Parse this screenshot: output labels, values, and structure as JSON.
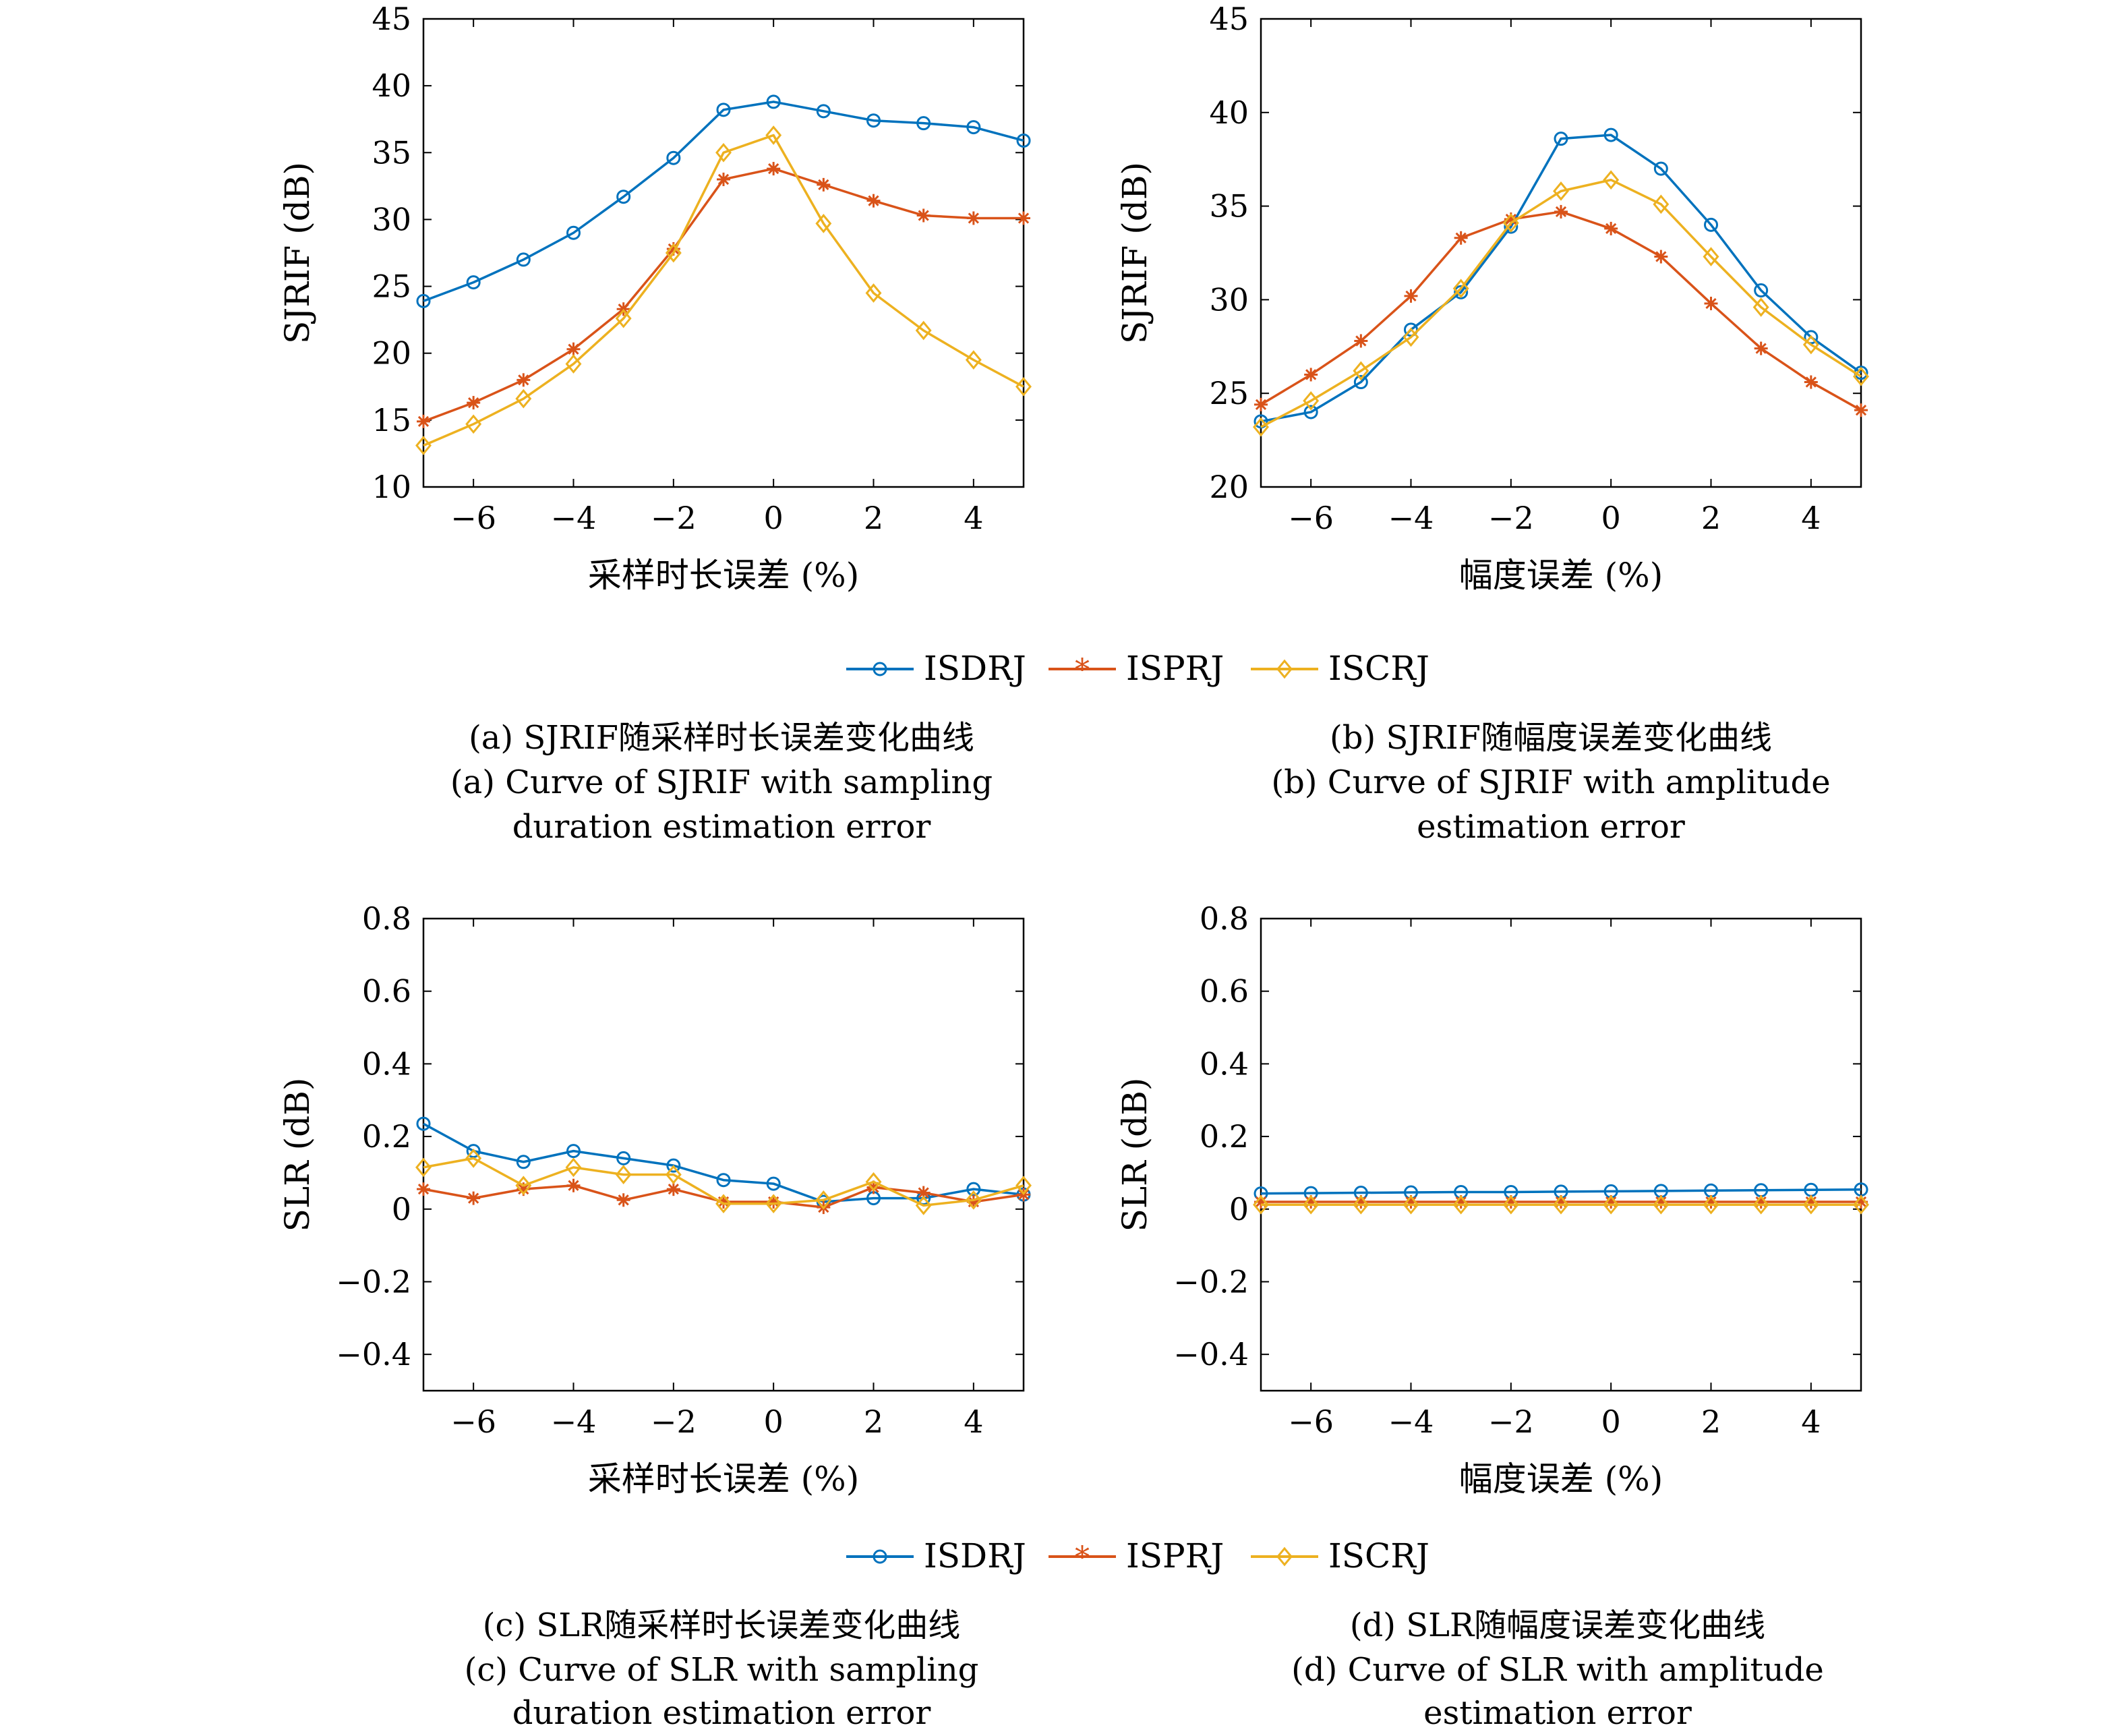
{
  "legend_a": {
    "items": [
      "ISDRJ",
      "ISPRJ",
      "ISCRJ"
    ]
  },
  "legend_b": {
    "items": [
      "ISDRJ",
      "ISPRJ",
      "ISCRJ"
    ]
  },
  "captions": [
    [
      "(a) SJRIF随采样时长误差变化曲线",
      "(a) Curve of SJRIF with sampling",
      "duration estimation error"
    ],
    [
      "(b) SJRIF随幅度误差变化曲线",
      "(b) Curve of SJRIF with amplitude",
      "estimation error"
    ],
    [
      "(c) SLR随采样时长误差变化曲线",
      "(c) Curve of SLR with sampling",
      "duration estimation error"
    ],
    [
      "(d) SLR随幅度误差变化曲线",
      "(d) Curve of SLR with amplitude",
      "estimation error"
    ]
  ],
  "colors": {
    "ISDRJ": "#0072BD",
    "ISPRJ": "#D95319",
    "ISCRJ": "#EDB120"
  },
  "chart_data": [
    {
      "type": "line",
      "xlabel": "采样时长误差 (%)",
      "ylabel": "SJRIF (dB)",
      "xlim": [
        -7,
        5
      ],
      "ylim": [
        10,
        45
      ],
      "xticks": [
        -6,
        -4,
        -2,
        0,
        2,
        4
      ],
      "yticks": [
        10,
        15,
        20,
        25,
        30,
        35,
        40,
        45
      ],
      "x": [
        -7,
        -6,
        -5,
        -4,
        -3,
        -2,
        -1,
        0,
        1,
        2,
        3,
        4,
        5
      ],
      "series": [
        {
          "name": "ISDRJ",
          "marker": "circle",
          "values": [
            23.9,
            25.3,
            27.0,
            29.0,
            31.7,
            34.6,
            38.2,
            38.8,
            38.1,
            37.4,
            37.2,
            36.9,
            35.9
          ]
        },
        {
          "name": "ISPRJ",
          "marker": "star",
          "values": [
            14.9,
            16.3,
            18.0,
            20.3,
            23.3,
            27.8,
            33.0,
            33.8,
            32.6,
            31.4,
            30.3,
            30.1,
            30.1
          ]
        },
        {
          "name": "ISCRJ",
          "marker": "diamond",
          "values": [
            13.1,
            14.7,
            16.6,
            19.2,
            22.6,
            27.5,
            35.0,
            36.3,
            29.7,
            24.5,
            21.7,
            19.5,
            17.5
          ]
        }
      ]
    },
    {
      "type": "line",
      "xlabel": "幅度误差 (%)",
      "ylabel": "SJRIF (dB)",
      "xlim": [
        -7,
        5
      ],
      "ylim": [
        20,
        45
      ],
      "xticks": [
        -6,
        -4,
        -2,
        0,
        2,
        4
      ],
      "yticks": [
        20,
        25,
        30,
        35,
        40,
        45
      ],
      "x": [
        -7,
        -6,
        -5,
        -4,
        -3,
        -2,
        -1,
        0,
        1,
        2,
        3,
        4,
        5
      ],
      "series": [
        {
          "name": "ISDRJ",
          "marker": "circle",
          "values": [
            23.5,
            24.0,
            25.6,
            28.4,
            30.4,
            33.9,
            38.6,
            38.8,
            37.0,
            34.0,
            30.5,
            28.0,
            26.1
          ]
        },
        {
          "name": "ISPRJ",
          "marker": "star",
          "values": [
            24.4,
            26.0,
            27.8,
            30.2,
            33.3,
            34.3,
            34.7,
            33.8,
            32.3,
            29.8,
            27.4,
            25.6,
            24.1
          ]
        },
        {
          "name": "ISCRJ",
          "marker": "diamond",
          "values": [
            23.2,
            24.6,
            26.2,
            28.0,
            30.6,
            34.1,
            35.8,
            36.4,
            35.1,
            32.3,
            29.6,
            27.6,
            25.9
          ]
        }
      ]
    },
    {
      "type": "line",
      "xlabel": "采样时长误差 (%)",
      "ylabel": "SLR (dB)",
      "xlim": [
        -7,
        5
      ],
      "ylim": [
        -0.5,
        0.8
      ],
      "xticks": [
        -6,
        -4,
        -2,
        0,
        2,
        4
      ],
      "yticks": [
        -0.4,
        -0.2,
        0,
        0.2,
        0.4,
        0.6,
        0.8
      ],
      "ytick_labels": [
        "−0.4",
        "−0.2",
        "0",
        "0.2",
        "0.4",
        "0.6",
        "0.8"
      ],
      "x": [
        -7,
        -6,
        -5,
        -4,
        -3,
        -2,
        -1,
        0,
        1,
        2,
        3,
        4,
        5
      ],
      "series": [
        {
          "name": "ISDRJ",
          "marker": "circle",
          "values": [
            0.235,
            0.16,
            0.13,
            0.16,
            0.14,
            0.12,
            0.08,
            0.07,
            0.02,
            0.03,
            0.03,
            0.055,
            0.04
          ]
        },
        {
          "name": "ISPRJ",
          "marker": "star",
          "values": [
            0.055,
            0.03,
            0.055,
            0.065,
            0.025,
            0.055,
            0.02,
            0.02,
            0.005,
            0.06,
            0.045,
            0.02,
            0.04
          ]
        },
        {
          "name": "ISCRJ",
          "marker": "diamond",
          "values": [
            0.115,
            0.14,
            0.065,
            0.115,
            0.095,
            0.095,
            0.015,
            0.015,
            0.025,
            0.075,
            0.01,
            0.025,
            0.065
          ]
        }
      ]
    },
    {
      "type": "line",
      "xlabel": "幅度误差 (%)",
      "ylabel": "SLR (dB)",
      "xlim": [
        -7,
        5
      ],
      "ylim": [
        -0.5,
        0.8
      ],
      "xticks": [
        -6,
        -4,
        -2,
        0,
        2,
        4
      ],
      "yticks": [
        -0.4,
        -0.2,
        0,
        0.2,
        0.4,
        0.6,
        0.8
      ],
      "ytick_labels": [
        "−0.4",
        "−0.2",
        "0",
        "0.2",
        "0.4",
        "0.6",
        "0.8"
      ],
      "x": [
        -7,
        -6,
        -5,
        -4,
        -3,
        -2,
        -1,
        0,
        1,
        2,
        3,
        4,
        5
      ],
      "series": [
        {
          "name": "ISDRJ",
          "marker": "circle",
          "values": [
            0.043,
            0.044,
            0.045,
            0.046,
            0.047,
            0.047,
            0.048,
            0.049,
            0.05,
            0.051,
            0.052,
            0.053,
            0.054
          ]
        },
        {
          "name": "ISPRJ",
          "marker": "star",
          "values": [
            0.02,
            0.02,
            0.02,
            0.02,
            0.02,
            0.02,
            0.02,
            0.02,
            0.02,
            0.02,
            0.02,
            0.02,
            0.02
          ]
        },
        {
          "name": "ISCRJ",
          "marker": "diamond",
          "values": [
            0.012,
            0.012,
            0.012,
            0.012,
            0.012,
            0.012,
            0.012,
            0.012,
            0.012,
            0.012,
            0.012,
            0.012,
            0.012
          ]
        }
      ]
    }
  ]
}
